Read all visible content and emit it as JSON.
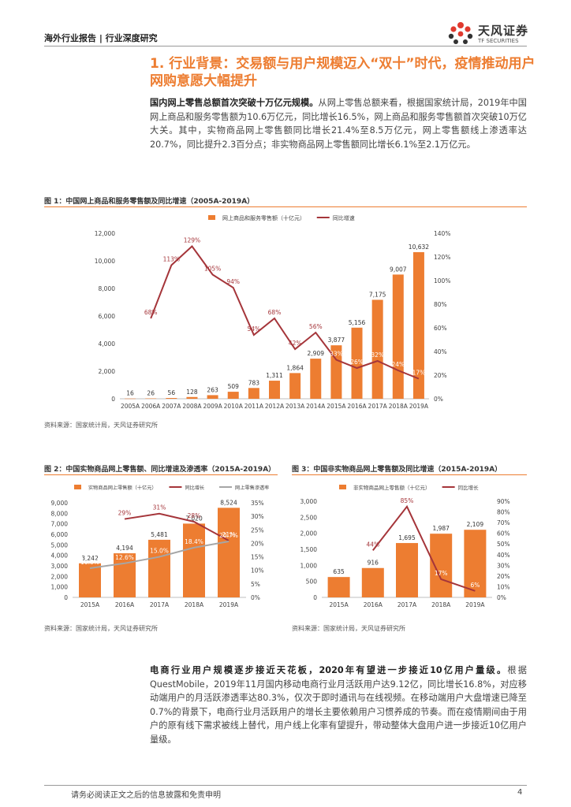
{
  "header": {
    "title": "海外行业报告 | 行业深度研究"
  },
  "logo": {
    "cn": "天风证券",
    "en": "TF SECURITIES"
  },
  "section": {
    "title": "1. 行业背景：交易额与用户规模迈入“双十”时代，疫情推动用户网购意愿大幅提升"
  },
  "para1": {
    "lead": "国内网上零售总额首次突破十万亿元规模。",
    "body": "从网上零售总额来看，根据国家统计局，2019年中国网上商品和服务零售额为10.6万亿元，同比增长16.5%，网上商品和服务零售额首次突破10万亿大关。其中，实物商品网上零售额同比增长21.4%至8.5万亿元，网上零售额线上渗透率达20.7%，同比提升2.3百分点；非实物商品网上零售额同比增长6.1%至2.1万亿元。"
  },
  "fig1": {
    "title": "图 1：中国网上商品和服务零售额及同比增速（2005A-2019A）",
    "source": "资料来源：国家统计局，天风证券研究所"
  },
  "fig2": {
    "title": "图 2：中国实物商品网上零售额、同比增速及渗透率（2015A-2019A）",
    "source": "资料来源：国家统计局，天风证券研究所"
  },
  "fig3": {
    "title": "图 3：中国非实物商品网上零售额及同比增速（2015A-2019A）",
    "source": "资料来源：国家统计局，天风证券研究所"
  },
  "para2": {
    "lead": "电商行业用户规模逐步接近天花板，2020年有望进一步接近10亿用户量级。",
    "body": "根据QuestMobile，2019年11月国内移动电商行业月活跃用户达9.12亿，同比增长16.8%，对应移动端用户的月活跃渗透率达80.3%，仅次于即时通讯与在线视频。在移动端用户大盘增速已降至0.7%的背景下，电商行业月活跃用户的增长主要依赖用户习惯养成的节奏。而在疫情期间由于用户的原有线下需求被线上替代，用户线上化率有望提升，带动整体大盘用户进一步接近10亿用户量级。"
  },
  "footer": {
    "disclaimer": "请务必阅读正文之后的信息披露和免责申明",
    "page": "4"
  },
  "colors": {
    "bar": "#ED7D31",
    "line": "#A5353A",
    "penetration": "#A6A6A6"
  },
  "chart_data": [
    {
      "type": "bar",
      "categories": [
        "2005A",
        "2006A",
        "2007A",
        "2008A",
        "2009A",
        "2010A",
        "2011A",
        "2012A",
        "2013A",
        "2014A",
        "2015A",
        "2016A",
        "2017A",
        "2018A",
        "2019A"
      ],
      "series": [
        {
          "name": "网上商品和服务零售额（十亿元）",
          "type": "bar",
          "axis": "left",
          "values": [
            16,
            26,
            56,
            128,
            263,
            509,
            783,
            1311,
            1864,
            2909,
            3877,
            5156,
            7175,
            9007,
            10632
          ],
          "labels": [
            "16",
            "26",
            "56",
            "128",
            "263",
            "509",
            "783",
            "1,311",
            "1,864",
            "2,909",
            "3,877",
            "5,156",
            "7,175",
            "9,007",
            "10,632"
          ]
        },
        {
          "name": "同比增速",
          "type": "line",
          "axis": "right",
          "values": [
            null,
            68,
            113,
            129,
            105,
            94,
            54,
            68,
            42,
            56,
            33,
            26,
            32,
            24,
            17
          ],
          "labels": [
            "",
            "68%",
            "113%",
            "129%",
            "105%",
            "94%",
            "54%",
            "68%",
            "42%",
            "56%",
            "33%",
            "26%",
            "32%",
            "24%",
            "17%"
          ]
        }
      ],
      "ylim": [
        0,
        12000
      ],
      "yticks": [
        "0",
        "2,000",
        "4,000",
        "6,000",
        "8,000",
        "10,000",
        "12,000"
      ],
      "y2lim": [
        0,
        140
      ],
      "y2ticks": [
        "0%",
        "20%",
        "40%",
        "60%",
        "80%",
        "100%",
        "120%",
        "140%"
      ],
      "legend": "top"
    },
    {
      "type": "bar",
      "categories": [
        "2015A",
        "2016A",
        "2017A",
        "2018A",
        "2019A"
      ],
      "series": [
        {
          "name": "实物商品网上零售额（十亿元）",
          "type": "bar",
          "axis": "left",
          "values": [
            3242,
            4194,
            5481,
            7020,
            8524
          ],
          "labels": [
            "3,242",
            "4,194",
            "5,481",
            "7,020",
            "8,524"
          ]
        },
        {
          "name": "同比增长",
          "type": "line",
          "axis": "right",
          "values": [
            null,
            29,
            31,
            28,
            21
          ],
          "labels": [
            "",
            "29%",
            "31%",
            "28%",
            "21%"
          ]
        },
        {
          "name": "网上零售渗透率",
          "type": "line",
          "axis": "right",
          "values": [
            10.8,
            12.6,
            15.0,
            18.4,
            20.7
          ],
          "labels": [
            "10.8%",
            "12.6%",
            "15.0%",
            "18.4%",
            "20.7%"
          ]
        }
      ],
      "ylim": [
        0,
        9000
      ],
      "yticks": [
        "0",
        "1,000",
        "2,000",
        "3,000",
        "4,000",
        "5,000",
        "6,000",
        "7,000",
        "8,000",
        "9,000"
      ],
      "y2lim": [
        0,
        35
      ],
      "y2ticks": [
        "0%",
        "5%",
        "10%",
        "15%",
        "20%",
        "25%",
        "30%",
        "35%"
      ],
      "legend": "top"
    },
    {
      "type": "bar",
      "categories": [
        "2015A",
        "2016A",
        "2017A",
        "2018A",
        "2019A"
      ],
      "series": [
        {
          "name": "非实物商品网上零售额（十亿元）",
          "type": "bar",
          "axis": "left",
          "values": [
            635,
            916,
            1695,
            1987,
            2109
          ],
          "labels": [
            "635",
            "916",
            "1,695",
            "1,987",
            "2,109"
          ]
        },
        {
          "name": "同比增长",
          "type": "line",
          "axis": "right",
          "values": [
            null,
            44,
            85,
            17,
            6
          ],
          "labels": [
            "",
            "44%",
            "85%",
            "17%",
            "6%"
          ]
        }
      ],
      "ylim": [
        0,
        3000
      ],
      "yticks": [
        "0",
        "500",
        "1,000",
        "1,500",
        "2,000",
        "2,500",
        "3,000"
      ],
      "y2lim": [
        0,
        90
      ],
      "y2ticks": [
        "0%",
        "10%",
        "20%",
        "30%",
        "40%",
        "50%",
        "60%",
        "70%",
        "80%",
        "90%"
      ],
      "legend": "top"
    }
  ]
}
